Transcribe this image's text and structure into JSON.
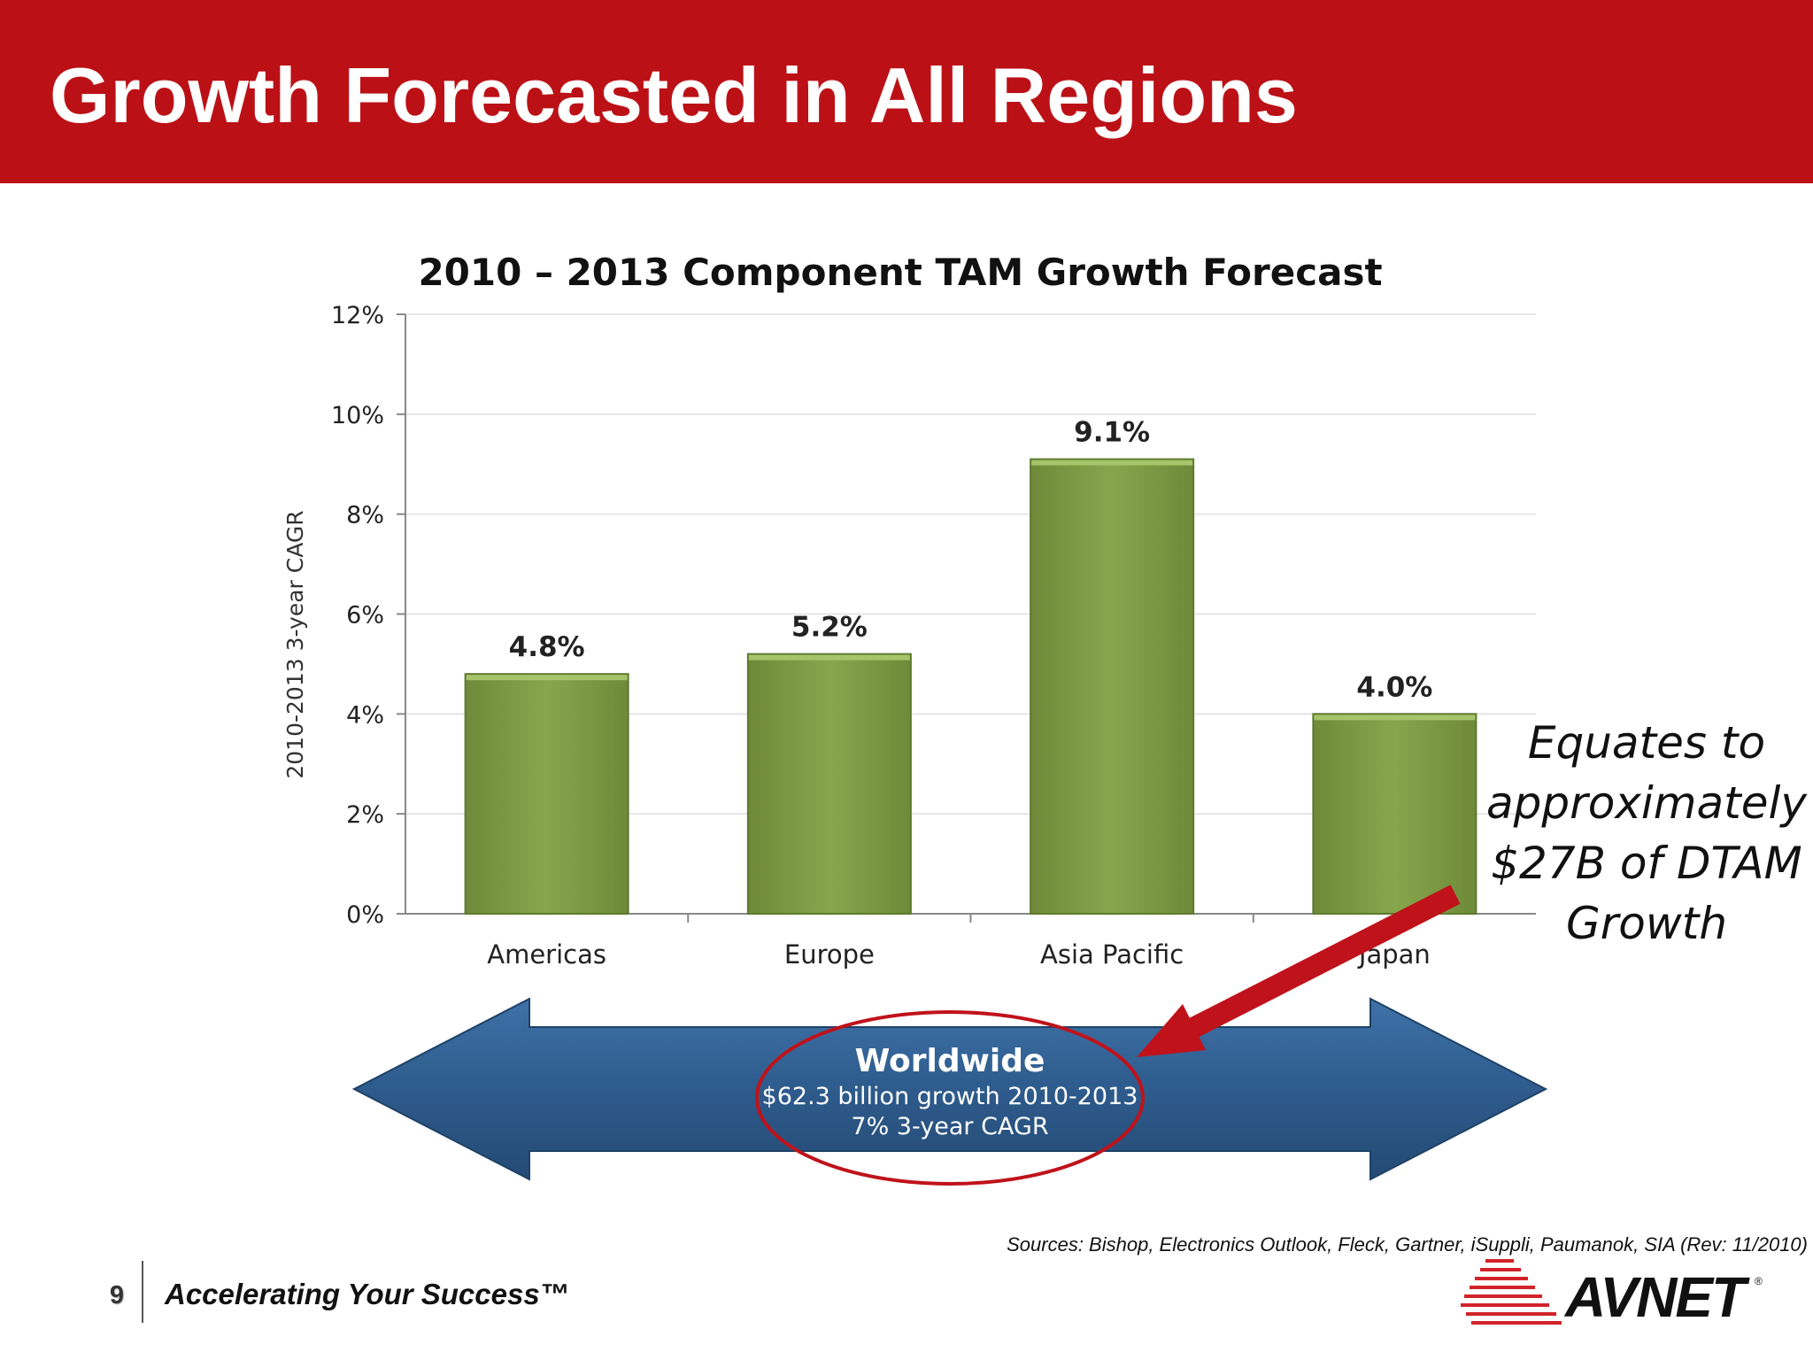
{
  "header": {
    "title": "Growth Forecasted in All Regions",
    "background_color": "#bb1116"
  },
  "chart_data": {
    "type": "bar",
    "title": "2010 – 2013 Component TAM Growth Forecast",
    "xlabel": "",
    "ylabel": "2010-2013 3-year CAGR",
    "categories": [
      "Americas",
      "Europe",
      "Asia Pacific",
      "Japan"
    ],
    "values": [
      4.8,
      5.2,
      9.1,
      4.0
    ],
    "value_labels": [
      "4.8%",
      "5.2%",
      "9.1%",
      "4.0%"
    ],
    "ylim": [
      0,
      12
    ],
    "yticks": [
      0,
      2,
      4,
      6,
      8,
      10,
      12
    ],
    "ytick_labels": [
      "0%",
      "2%",
      "4%",
      "6%",
      "8%",
      "10%",
      "12%"
    ],
    "grid": true,
    "bar_color": "#7d9c44"
  },
  "worldwide": {
    "title": "Worldwide",
    "line1": "$62.3 billion growth 2010-2013",
    "line2": "7% 3-year CAGR",
    "arrow_color": "#2f5d8f",
    "highlight_color": "#c0121a"
  },
  "annotation": {
    "lines": [
      "Equates to",
      "approximately",
      "$27B of  DTAM",
      "Growth"
    ]
  },
  "footer": {
    "sources": "Sources: Bishop, Electronics Outlook, Fleck, Gartner, iSuppli, Paumanok, SIA  (Rev:  11/2010)",
    "page_number": "9",
    "tagline": "Accelerating Your Success™",
    "logo_text": "AVNET",
    "logo_reg": "®",
    "logo_icon": "avnet-logo-icon"
  }
}
